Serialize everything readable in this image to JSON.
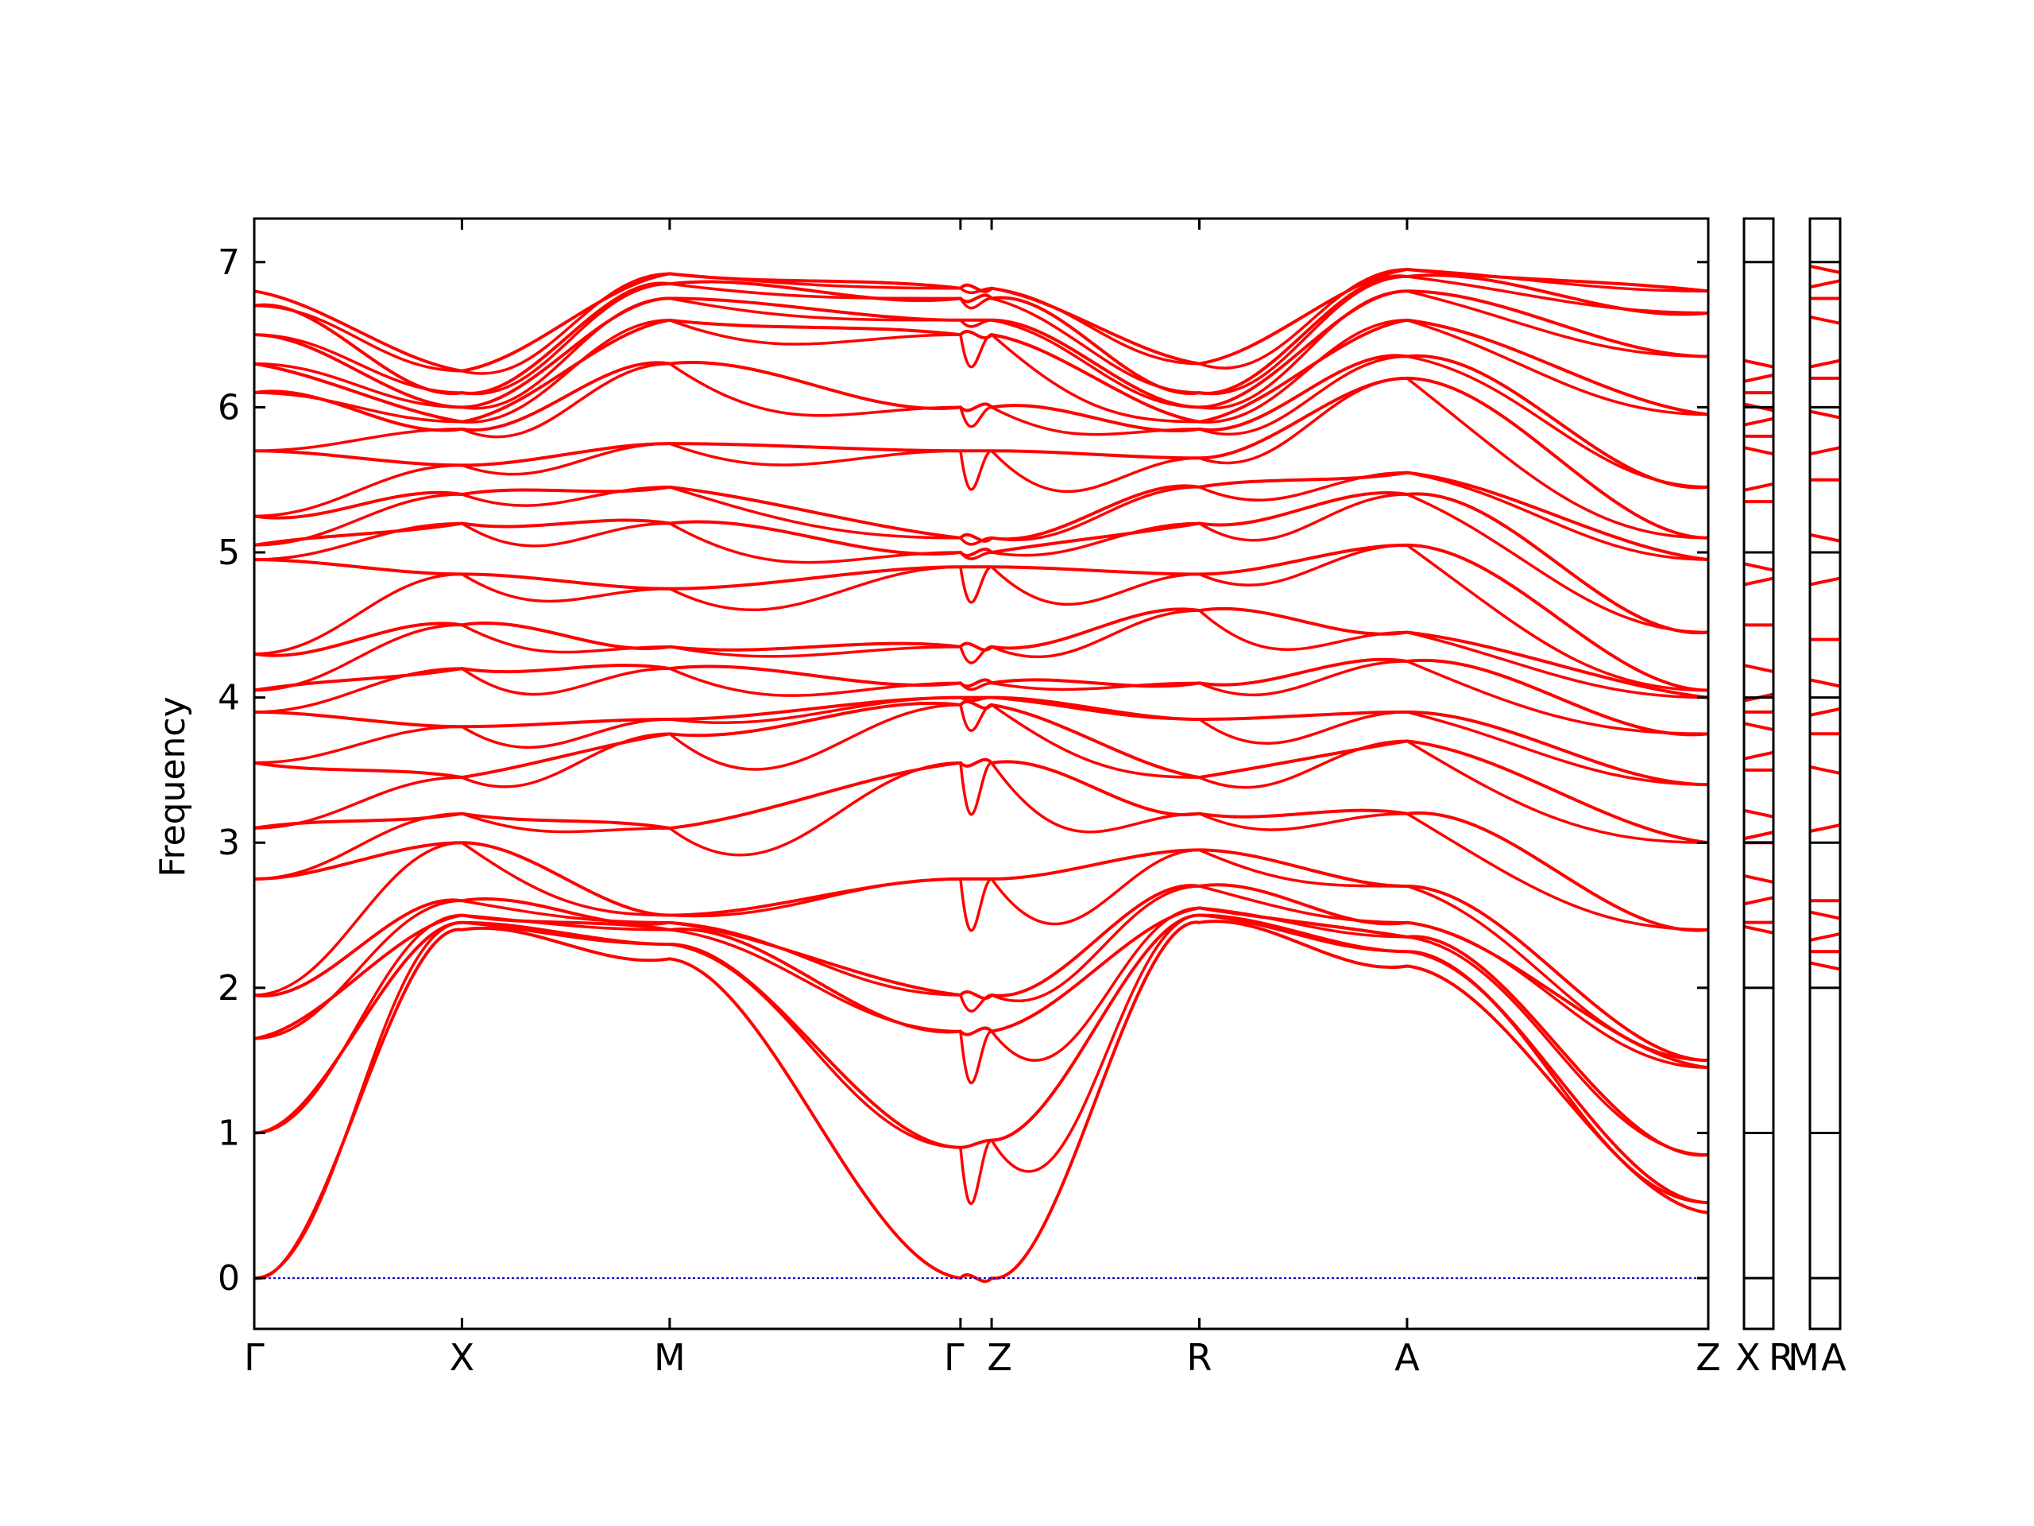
{
  "chart_data": {
    "type": "line",
    "title": "",
    "ylabel": "Frequency",
    "xlabel": "",
    "ylim": [
      -0.35,
      7.3
    ],
    "yticks": [
      0,
      1,
      2,
      3,
      4,
      5,
      6,
      7
    ],
    "colors": {
      "band": "#ff0000",
      "zero_line": "#0000cc",
      "axes": "#000000"
    },
    "grid": false,
    "panels": [
      {
        "name": "main",
        "path_labels": [
          "Γ",
          "X",
          "M",
          "Γ",
          "Z",
          "R",
          "A",
          "Z"
        ],
        "path_positions": [
          0,
          1,
          2,
          3.4,
          3.55,
          4.55,
          5.55,
          7.0
        ],
        "segment_end_values": [
          [
            0,
            1.0,
            1.65,
            1.95,
            2.75,
            3.1,
            3.55,
            3.9,
            4.05,
            4.3,
            4.95,
            5.05,
            5.25,
            5.7,
            6.1,
            6.3,
            6.5,
            6.7,
            6.8
          ],
          [
            2.4,
            2.45,
            2.5,
            2.6,
            3.0,
            3.2,
            3.45,
            3.8,
            4.2,
            4.5,
            4.85,
            5.2,
            5.4,
            5.6,
            5.85,
            5.9,
            6.0,
            6.1,
            6.25
          ],
          [
            2.2,
            2.3,
            2.4,
            2.45,
            2.5,
            3.1,
            3.75,
            3.85,
            4.2,
            4.35,
            4.75,
            5.2,
            5.45,
            5.75,
            6.3,
            6.6,
            6.75,
            6.85,
            6.92
          ],
          [
            0,
            0.9,
            1.7,
            1.95,
            2.75,
            3.55,
            3.95,
            4.0,
            4.1,
            4.35,
            4.9,
            5.0,
            5.1,
            5.7,
            6.0,
            6.5,
            6.6,
            6.75,
            6.82
          ],
          [
            0,
            0.95,
            1.7,
            1.95,
            2.75,
            3.55,
            3.95,
            4.0,
            4.1,
            4.35,
            4.9,
            5.0,
            5.1,
            5.7,
            6.0,
            6.5,
            6.6,
            6.75,
            6.82
          ],
          [
            2.45,
            2.5,
            2.55,
            2.7,
            2.95,
            3.2,
            3.45,
            3.85,
            4.1,
            4.6,
            4.85,
            5.2,
            5.45,
            5.65,
            5.85,
            5.9,
            6.0,
            6.1,
            6.3
          ],
          [
            2.15,
            2.25,
            2.35,
            2.45,
            2.7,
            3.2,
            3.7,
            3.9,
            4.25,
            4.45,
            5.05,
            5.4,
            5.55,
            6.2,
            6.35,
            6.6,
            6.8,
            6.9,
            6.95
          ],
          [
            0.45,
            0.52,
            0.85,
            1.45,
            1.5,
            2.4,
            3.0,
            3.4,
            3.75,
            4.0,
            4.05,
            4.45,
            4.95,
            5.1,
            5.45,
            5.95,
            6.35,
            6.65,
            6.8
          ]
        ]
      },
      {
        "name": "Z-X",
        "path_labels": [
          "Z",
          "X"
        ]
      },
      {
        "name": "R-M-A",
        "path_labels": [
          "R",
          "M",
          "A"
        ]
      }
    ],
    "side_panel_levels": {
      "ZX": [
        2.4,
        2.45,
        2.6,
        2.75,
        3.0,
        3.05,
        3.2,
        3.5,
        3.6,
        3.8,
        3.9,
        4.0,
        4.2,
        4.5,
        4.8,
        4.9,
        5.35,
        5.45,
        5.7,
        5.8,
        5.9,
        6.0,
        6.1,
        6.2,
        6.3
      ],
      "MA": [
        2.15,
        2.25,
        2.35,
        2.5,
        2.6,
        3.1,
        3.5,
        3.75,
        3.9,
        4.1,
        4.4,
        4.8,
        5.1,
        5.5,
        5.7,
        5.95,
        6.2,
        6.3,
        6.6,
        6.75,
        6.85,
        6.95
      ]
    }
  }
}
